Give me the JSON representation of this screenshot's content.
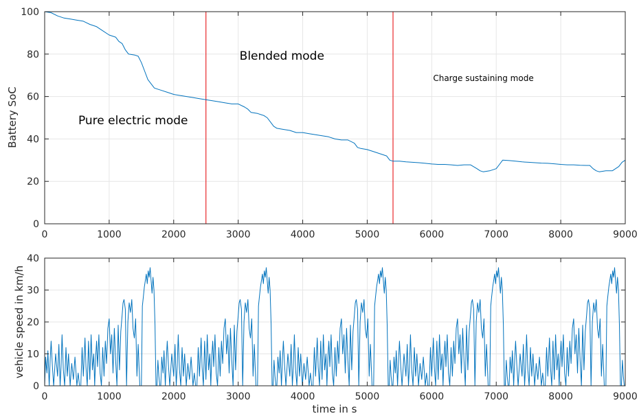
{
  "chart_data": [
    {
      "type": "line",
      "xlabel": "",
      "ylabel": "Battery SoC",
      "xlim": [
        0,
        9000
      ],
      "ylim": [
        0,
        100
      ],
      "grid": true,
      "xticks": [
        "0",
        "1000",
        "2000",
        "3000",
        "4000",
        "5000",
        "6000",
        "7000",
        "8000",
        "9000"
      ],
      "yticks": [
        "0",
        "20",
        "40",
        "60",
        "80",
        "100"
      ],
      "series": [
        {
          "color": "#0072bd",
          "x": [
            0,
            100,
            200,
            300,
            400,
            500,
            600,
            700,
            800,
            900,
            1000,
            1100,
            1150,
            1200,
            1250,
            1300,
            1400,
            1450,
            1500,
            1550,
            1600,
            1650,
            1700,
            1750,
            1800,
            1900,
            2000,
            2100,
            2200,
            2300,
            2400,
            2500,
            2600,
            2700,
            2800,
            2900,
            3000,
            3100,
            3150,
            3200,
            3300,
            3400,
            3450,
            3500,
            3550,
            3600,
            3700,
            3800,
            3900,
            4000,
            4100,
            4200,
            4300,
            4400,
            4500,
            4600,
            4700,
            4800,
            4850,
            4900,
            5000,
            5100,
            5200,
            5300,
            5350,
            5400,
            5500,
            5600,
            5700,
            5800,
            5900,
            6000,
            6100,
            6200,
            6300,
            6400,
            6500,
            6600,
            6700,
            6750,
            6800,
            6900,
            7000,
            7050,
            7100,
            7200,
            7300,
            7400,
            7500,
            7600,
            7700,
            7800,
            7900,
            8000,
            8100,
            8200,
            8300,
            8400,
            8450,
            8500,
            8550,
            8600,
            8700,
            8800,
            8850,
            8900,
            8950,
            9000
          ],
          "y": [
            100,
            99.5,
            98,
            97,
            96.5,
            96,
            95.5,
            94,
            93,
            91,
            89,
            88,
            86,
            85,
            82,
            80,
            79.5,
            79,
            76,
            72,
            68,
            66,
            64,
            63.5,
            63,
            62,
            61,
            60.5,
            60,
            59.5,
            59,
            58.5,
            58,
            57.5,
            57,
            56.5,
            56.5,
            55,
            54,
            52.5,
            52,
            51,
            50,
            48,
            46,
            45,
            44.5,
            44,
            43,
            43,
            42.5,
            42,
            41.5,
            41,
            40,
            39.5,
            39.5,
            38,
            36,
            35.5,
            35,
            34,
            33,
            32,
            30,
            29.5,
            29.5,
            29.2,
            29,
            28.8,
            28.5,
            28.2,
            28,
            28,
            27.8,
            27.5,
            27.8,
            27.8,
            26,
            25,
            24.5,
            25,
            26,
            28,
            30,
            29.8,
            29.5,
            29.2,
            29,
            28.8,
            28.6,
            28.5,
            28.3,
            28,
            27.8,
            27.8,
            27.6,
            27.5,
            27.5,
            26,
            25,
            24.5,
            25,
            25,
            26,
            27,
            29,
            30
          ]
        }
      ],
      "annotations": [
        {
          "text": "Pure electric mode",
          "x": 500,
          "y": 48.5
        },
        {
          "text": "Blended mode",
          "x": 3000,
          "y": 79
        },
        {
          "text": "Charge sustaining mode",
          "x": 6000,
          "y": 69
        }
      ],
      "vlines": [
        {
          "x": 2500,
          "color": "#e8272a"
        },
        {
          "x": 5400,
          "color": "#e8272a"
        }
      ]
    },
    {
      "type": "line",
      "xlabel": "time in s",
      "ylabel": "vehicle speed in km/h",
      "xlim": [
        0,
        9000
      ],
      "ylim": [
        0,
        40
      ],
      "grid": true,
      "xticks": [
        "0",
        "1000",
        "2000",
        "3000",
        "4000",
        "5000",
        "6000",
        "7000",
        "8000",
        "9000"
      ],
      "yticks": [
        "0",
        "10",
        "20",
        "30",
        "40"
      ],
      "series": [
        {
          "color": "#0072bd",
          "cycle_period_s": 1800,
          "cycles": 5,
          "cycle_x": [
            0,
            15,
            35,
            50,
            70,
            85,
            100,
            120,
            140,
            170,
            200,
            220,
            240,
            255,
            270,
            290,
            310,
            330,
            350,
            370,
            395,
            420,
            445,
            470,
            500,
            520,
            540,
            560,
            580,
            600,
            625,
            640,
            660,
            680,
            700,
            720,
            740,
            760,
            775,
            790,
            805,
            820,
            840,
            860,
            880,
            900,
            920,
            940,
            960,
            980,
            1000,
            1020,
            1040,
            1060,
            1080,
            1100,
            1120,
            1140,
            1160,
            1180,
            1200,
            1215,
            1230,
            1250,
            1270,
            1290,
            1310,
            1330,
            1350,
            1370,
            1390,
            1410,
            1430,
            1450,
            1475,
            1500,
            1515,
            1530,
            1545,
            1560,
            1575,
            1590,
            1605,
            1620,
            1635,
            1650,
            1665,
            1680,
            1695,
            1710,
            1725,
            1740,
            1755,
            1770,
            1785,
            1800
          ],
          "cycle_y": [
            0,
            9,
            4,
            11,
            0,
            8,
            14,
            6,
            0,
            10,
            3,
            13,
            0,
            6,
            16,
            5,
            0,
            12,
            3,
            10,
            0,
            7,
            2,
            9,
            0,
            4,
            0,
            0,
            12,
            3,
            15,
            6,
            0,
            14,
            2,
            16,
            5,
            10,
            0,
            9,
            14,
            6,
            16,
            4,
            0,
            12,
            3,
            14,
            7,
            18,
            21,
            10,
            16,
            4,
            18,
            8,
            0,
            19,
            5,
            17,
            22,
            26,
            27,
            24,
            0,
            20,
            26,
            23,
            27,
            18,
            15,
            21,
            3,
            13,
            0,
            0,
            25,
            28,
            31,
            33,
            35,
            32,
            36,
            34,
            37,
            33,
            29,
            34,
            30,
            19,
            0,
            0,
            8,
            3,
            0,
            0
          ]
        }
      ]
    }
  ]
}
